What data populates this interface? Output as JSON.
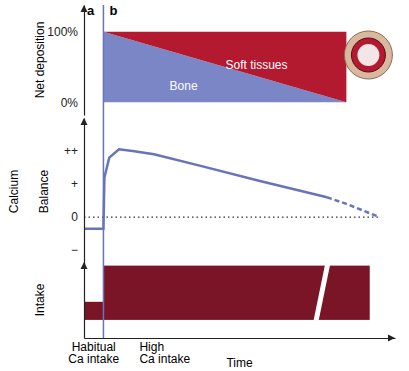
{
  "chart_data": [
    {
      "type": "area",
      "stacked": true,
      "annotations": [
        "a",
        "b"
      ],
      "ylabel": "Net deposition",
      "x": [
        1,
        13.5
      ],
      "series": [
        {
          "name": "Bone",
          "color": "#7b86c6",
          "values": [
            100,
            0
          ]
        },
        {
          "name": "Soft tissues",
          "color": "#b3192f",
          "values": [
            0,
            100
          ]
        }
      ],
      "xlim": [
        0,
        16
      ],
      "ylim": [
        -18,
        138
      ],
      "yticks": [
        {
          "value": 0,
          "label": "0%"
        },
        {
          "value": 100,
          "label": "100%"
        }
      ],
      "tick_labels": "y"
    },
    {
      "type": "line",
      "ylabel": "Calcium Balance",
      "series": [
        {
          "color": "#6674b8",
          "line_style": "solid",
          "x": [
            0,
            1,
            1.05,
            1.3,
            1.8,
            2.5,
            3.6,
            6,
            9,
            12.5
          ],
          "values": [
            -0.35,
            -0.35,
            1.2,
            1.8,
            2.05,
            2.0,
            1.9,
            1.55,
            1.1,
            0.6
          ]
        },
        {
          "color": "#6674b8",
          "line_style": "dashed",
          "x": [
            12.5,
            13.5,
            15.2
          ],
          "values": [
            0.6,
            0.4,
            0
          ]
        },
        {
          "color": "#333333",
          "line_style": "dotted",
          "x": [
            0,
            15.2
          ],
          "values": [
            0,
            0
          ]
        }
      ],
      "xlim": [
        0,
        16
      ],
      "ylim": [
        -1.45,
        3
      ],
      "yticks": [
        {
          "value": -1,
          "label": "−"
        },
        0,
        {
          "value": 1,
          "label": "+"
        },
        {
          "value": 2,
          "label": "++"
        }
      ],
      "tick_labels": "y"
    },
    {
      "type": "bar",
      "ylabel": "Intake",
      "xlabel": "Time",
      "categories": [
        "Habitual Ca intake",
        "High Ca intake"
      ],
      "bins": [
        0,
        1,
        14.7
      ],
      "values": [
        1,
        3
      ],
      "color": "#7a1427",
      "xlim": [
        0,
        16
      ],
      "ylim": [
        -1,
        3.2
      ],
      "tick_labels": false
    }
  ]
}
